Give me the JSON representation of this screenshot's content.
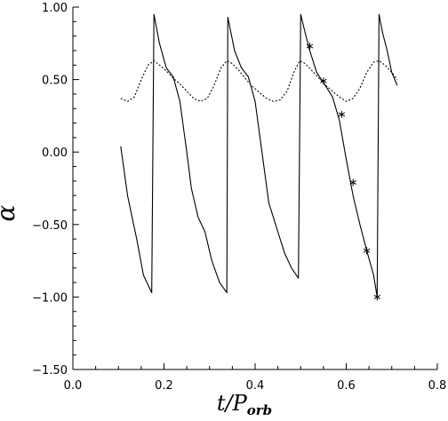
{
  "chart_data": {
    "type": "line",
    "title": "",
    "xlabel_main": "t/P",
    "xlabel_sub": "orb",
    "ylabel": "α",
    "xlim": [
      0.0,
      0.8
    ],
    "ylim": [
      -1.5,
      1.0
    ],
    "x_ticks": [
      0.0,
      0.2,
      0.4,
      0.6,
      0.8
    ],
    "x_tick_labels": [
      "0.0",
      "0.2",
      "0.4",
      "0.6",
      "0.8"
    ],
    "y_ticks": [
      -1.5,
      -1.0,
      -0.5,
      0.0,
      0.5,
      1.0
    ],
    "y_tick_labels": [
      "−1.50",
      "−1.00",
      "−0.50",
      "0.00",
      "0.50",
      "1.00"
    ],
    "grid": false,
    "legend": "none",
    "series": [
      {
        "style": "solid",
        "points": [
          [
            0.105,
            0.04
          ],
          [
            0.12,
            -0.3
          ],
          [
            0.14,
            -0.6
          ],
          [
            0.155,
            -0.85
          ],
          [
            0.173,
            -0.97
          ],
          [
            0.178,
            0.95
          ],
          [
            0.19,
            0.75
          ],
          [
            0.205,
            0.58
          ],
          [
            0.22,
            0.52
          ],
          [
            0.235,
            0.35
          ],
          [
            0.25,
            0.0
          ],
          [
            0.26,
            -0.25
          ],
          [
            0.275,
            -0.45
          ],
          [
            0.29,
            -0.55
          ],
          [
            0.305,
            -0.75
          ],
          [
            0.322,
            -0.9
          ],
          [
            0.338,
            -0.97
          ],
          [
            0.34,
            0.93
          ],
          [
            0.355,
            0.7
          ],
          [
            0.37,
            0.58
          ],
          [
            0.385,
            0.52
          ],
          [
            0.4,
            0.35
          ],
          [
            0.415,
            0.0
          ],
          [
            0.43,
            -0.35
          ],
          [
            0.45,
            -0.55
          ],
          [
            0.465,
            -0.7
          ],
          [
            0.48,
            -0.8
          ],
          [
            0.495,
            -0.87
          ],
          [
            0.5,
            0.95
          ],
          [
            0.51,
            0.82
          ],
          [
            0.52,
            0.7
          ],
          [
            0.535,
            0.55
          ],
          [
            0.55,
            0.48
          ],
          [
            0.57,
            0.38
          ],
          [
            0.585,
            0.22
          ],
          [
            0.6,
            -0.05
          ],
          [
            0.615,
            -0.3
          ],
          [
            0.63,
            -0.5
          ],
          [
            0.645,
            -0.68
          ],
          [
            0.66,
            -0.85
          ],
          [
            0.668,
            -1.0
          ],
          [
            0.672,
            0.95
          ],
          [
            0.68,
            0.82
          ],
          [
            0.69,
            0.7
          ],
          [
            0.7,
            0.55
          ],
          [
            0.712,
            0.46
          ]
        ]
      },
      {
        "style": "dotted",
        "points": [
          [
            0.105,
            0.37
          ],
          [
            0.12,
            0.35
          ],
          [
            0.135,
            0.38
          ],
          [
            0.15,
            0.5
          ],
          [
            0.165,
            0.6
          ],
          [
            0.178,
            0.63
          ],
          [
            0.19,
            0.6
          ],
          [
            0.205,
            0.56
          ],
          [
            0.22,
            0.51
          ],
          [
            0.235,
            0.47
          ],
          [
            0.25,
            0.42
          ],
          [
            0.265,
            0.37
          ],
          [
            0.28,
            0.35
          ],
          [
            0.295,
            0.37
          ],
          [
            0.31,
            0.46
          ],
          [
            0.325,
            0.58
          ],
          [
            0.338,
            0.63
          ],
          [
            0.35,
            0.61
          ],
          [
            0.365,
            0.56
          ],
          [
            0.38,
            0.5
          ],
          [
            0.395,
            0.45
          ],
          [
            0.41,
            0.41
          ],
          [
            0.425,
            0.37
          ],
          [
            0.44,
            0.35
          ],
          [
            0.455,
            0.36
          ],
          [
            0.47,
            0.42
          ],
          [
            0.485,
            0.55
          ],
          [
            0.498,
            0.63
          ],
          [
            0.51,
            0.61
          ],
          [
            0.525,
            0.56
          ],
          [
            0.54,
            0.51
          ],
          [
            0.555,
            0.46
          ],
          [
            0.57,
            0.42
          ],
          [
            0.585,
            0.38
          ],
          [
            0.6,
            0.35
          ],
          [
            0.615,
            0.37
          ],
          [
            0.63,
            0.44
          ],
          [
            0.645,
            0.55
          ],
          [
            0.66,
            0.62
          ],
          [
            0.672,
            0.63
          ],
          [
            0.685,
            0.6
          ],
          [
            0.7,
            0.55
          ],
          [
            0.712,
            0.5
          ]
        ]
      }
    ],
    "markers": {
      "symbol": "*",
      "points": [
        [
          0.52,
          0.73
        ],
        [
          0.55,
          0.49
        ],
        [
          0.59,
          0.26
        ],
        [
          0.615,
          -0.21
        ],
        [
          0.645,
          -0.68
        ],
        [
          0.668,
          -1.0
        ]
      ]
    }
  }
}
